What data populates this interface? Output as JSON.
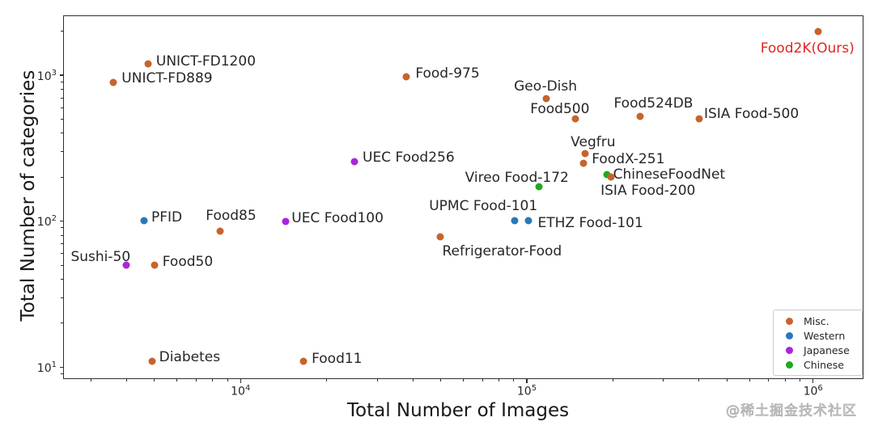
{
  "watermark": "@稀土掘金技术社区",
  "chart_data": {
    "type": "scatter",
    "title": "",
    "xlabel": "Total Number of Images",
    "ylabel": "Total Number of categories",
    "x_scale": "log",
    "y_scale": "log",
    "grid": false,
    "xlim": [
      2400,
      1500000
    ],
    "ylim": [
      8.3,
      2570
    ],
    "x_ticks": [
      10000,
      100000,
      1000000
    ],
    "y_ticks": [
      10,
      100,
      1000
    ],
    "legend": {
      "position": "lower right",
      "entries": [
        {
          "label": "Misc.",
          "color": "#c6642c"
        },
        {
          "label": "Western",
          "color": "#2878b5"
        },
        {
          "label": "Japanese",
          "color": "#aa23dd"
        },
        {
          "label": "Chinese",
          "color": "#20a820"
        }
      ]
    },
    "highlight_label_color": "#e02520",
    "points": [
      {
        "name": "UNICT-FD1200",
        "group": "Misc.",
        "images": 4750,
        "categories": 1200,
        "label_offset": [
          10,
          -13
        ]
      },
      {
        "name": "UNICT-FD889",
        "group": "Misc.",
        "images": 3600,
        "categories": 889,
        "label_offset": [
          10,
          -15
        ]
      },
      {
        "name": "Food-975",
        "group": "Misc.",
        "images": 38000,
        "categories": 975,
        "label_offset": [
          11,
          -14
        ]
      },
      {
        "name": "Geo-Dish",
        "group": "Misc.",
        "images": 117000,
        "categories": 690,
        "label_offset": [
          -40,
          -25
        ]
      },
      {
        "name": "Food500",
        "group": "Misc.",
        "images": 148000,
        "categories": 500,
        "label_offset": [
          -56,
          -22
        ]
      },
      {
        "name": "Food524DB",
        "group": "Misc.",
        "images": 248000,
        "categories": 524,
        "label_offset": [
          -32,
          -26
        ]
      },
      {
        "name": "ISIA Food-500",
        "group": "Misc.",
        "images": 400000,
        "categories": 500,
        "label_offset": [
          6,
          -16
        ]
      },
      {
        "name": "Food2K(Ours)",
        "group": "Misc.",
        "images": 1040000,
        "categories": 2000,
        "label_offset": [
          -71,
          11
        ],
        "label_color": "#e02520"
      },
      {
        "name": "Vegfru",
        "group": "Misc.",
        "images": 160000,
        "categories": 292,
        "label_offset": [
          -18,
          -24
        ]
      },
      {
        "name": "FoodX-251",
        "group": "Misc.",
        "images": 158000,
        "categories": 251,
        "label_offset": [
          10,
          -15
        ]
      },
      {
        "name": "ChineseFoodNet",
        "group": "Chinese",
        "images": 190000,
        "categories": 208,
        "label_offset": [
          8,
          -10
        ]
      },
      {
        "name": "ISIA Food-200",
        "group": "Misc.",
        "images": 197000,
        "categories": 200,
        "label_offset": [
          -13,
          7
        ]
      },
      {
        "name": "Vireo Food-172",
        "group": "Chinese",
        "images": 110000,
        "categories": 172,
        "label_offset": [
          -91,
          -21
        ]
      },
      {
        "name": "UEC Food256",
        "group": "Japanese",
        "images": 25000,
        "categories": 256,
        "label_offset": [
          10,
          -15
        ]
      },
      {
        "name": "UEC Food100",
        "group": "Japanese",
        "images": 14400,
        "categories": 100,
        "label_offset": [
          7,
          -14
        ]
      },
      {
        "name": "PFID",
        "group": "Western",
        "images": 4600,
        "categories": 101,
        "label_offset": [
          9,
          -14
        ]
      },
      {
        "name": "Food85",
        "group": "Misc.",
        "images": 8500,
        "categories": 85,
        "label_offset": [
          -18,
          -29
        ]
      },
      {
        "name": "UPMC Food-101",
        "group": "Western",
        "images": 90840,
        "categories": 101,
        "label_offset": [
          -106,
          -28
        ]
      },
      {
        "name": "ETHZ Food-101",
        "group": "Western",
        "images": 101000,
        "categories": 101,
        "label_offset": [
          12,
          -7
        ]
      },
      {
        "name": "Refrigerator-Food",
        "group": "Misc.",
        "images": 50000,
        "categories": 78,
        "label_offset": [
          2,
          8
        ]
      },
      {
        "name": "Sushi-50",
        "group": "Japanese",
        "images": 4000,
        "categories": 50,
        "label_offset": [
          -69,
          -20
        ]
      },
      {
        "name": "Food50",
        "group": "Misc.",
        "images": 5000,
        "categories": 50,
        "label_offset": [
          10,
          -14
        ]
      },
      {
        "name": "Diabetes",
        "group": "Misc.",
        "images": 4900,
        "categories": 11,
        "label_offset": [
          9,
          -15
        ]
      },
      {
        "name": "Food11",
        "group": "Misc.",
        "images": 16600,
        "categories": 11,
        "label_offset": [
          10,
          -13
        ]
      }
    ]
  }
}
